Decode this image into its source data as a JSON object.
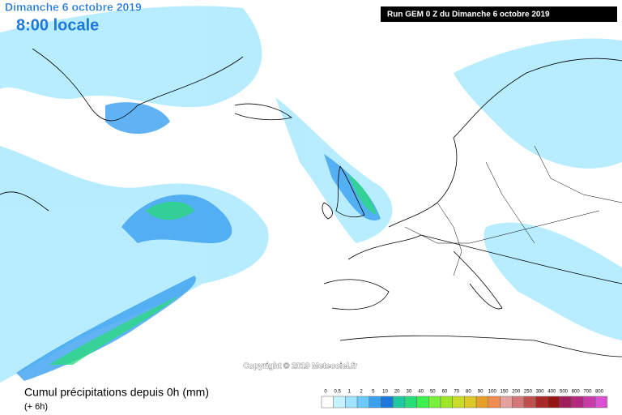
{
  "header": {
    "date": "Dimanche 6 octobre 2019",
    "time": "8:00 locale",
    "run": "Run GEM 0 Z du Dimanche 6 octobre 2019"
  },
  "copyright": "Copyright © 2019 Meteociel.fr",
  "footer": {
    "title": "Cumul précipitations depuis 0h (mm)",
    "subtitle": "(+ 6h)"
  },
  "legend": {
    "ticks": [
      0,
      0.5,
      1,
      2,
      5,
      10,
      20,
      30,
      40,
      50,
      60,
      70,
      80,
      90,
      100,
      150,
      200,
      250,
      300,
      400,
      500,
      600,
      700,
      800
    ],
    "colors": [
      "#ffffff",
      "#c6f2ff",
      "#9ee3ff",
      "#6ccaff",
      "#3aa0f0",
      "#1e78dc",
      "#20c8a0",
      "#28dc78",
      "#3cf050",
      "#78f03c",
      "#a0e628",
      "#c8dc28",
      "#dcc828",
      "#e6a028",
      "#f08c50",
      "#e6a0a0",
      "#d27878",
      "#be5050",
      "#aa2828",
      "#961414",
      "#a01e5a",
      "#b4287d",
      "#c83caa",
      "#dc50d2"
    ]
  }
}
